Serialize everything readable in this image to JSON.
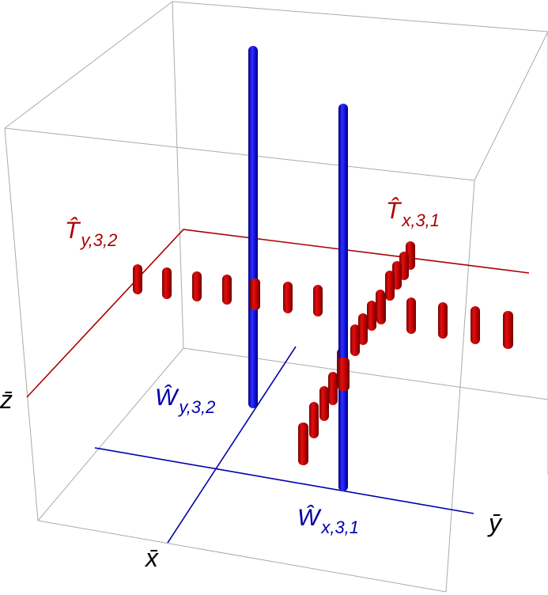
{
  "colors": {
    "box": "#aaaaaa",
    "red": "#aa0000",
    "blue": "#0000aa",
    "tube_red": "#cc0000",
    "tube_blue": "#1a1aff"
  },
  "labels": {
    "T_y": {
      "main": "T̂",
      "sub": "y,3,2"
    },
    "T_x": {
      "main": "T̂",
      "sub": "x,3,1"
    },
    "W_y": {
      "main": "Ŵ",
      "sub": "y,3,2"
    },
    "W_x": {
      "main": "Ŵ",
      "sub": "x,3,1"
    }
  },
  "axes": {
    "x": "x̄",
    "y": "ȳ",
    "z": "z̄"
  }
}
